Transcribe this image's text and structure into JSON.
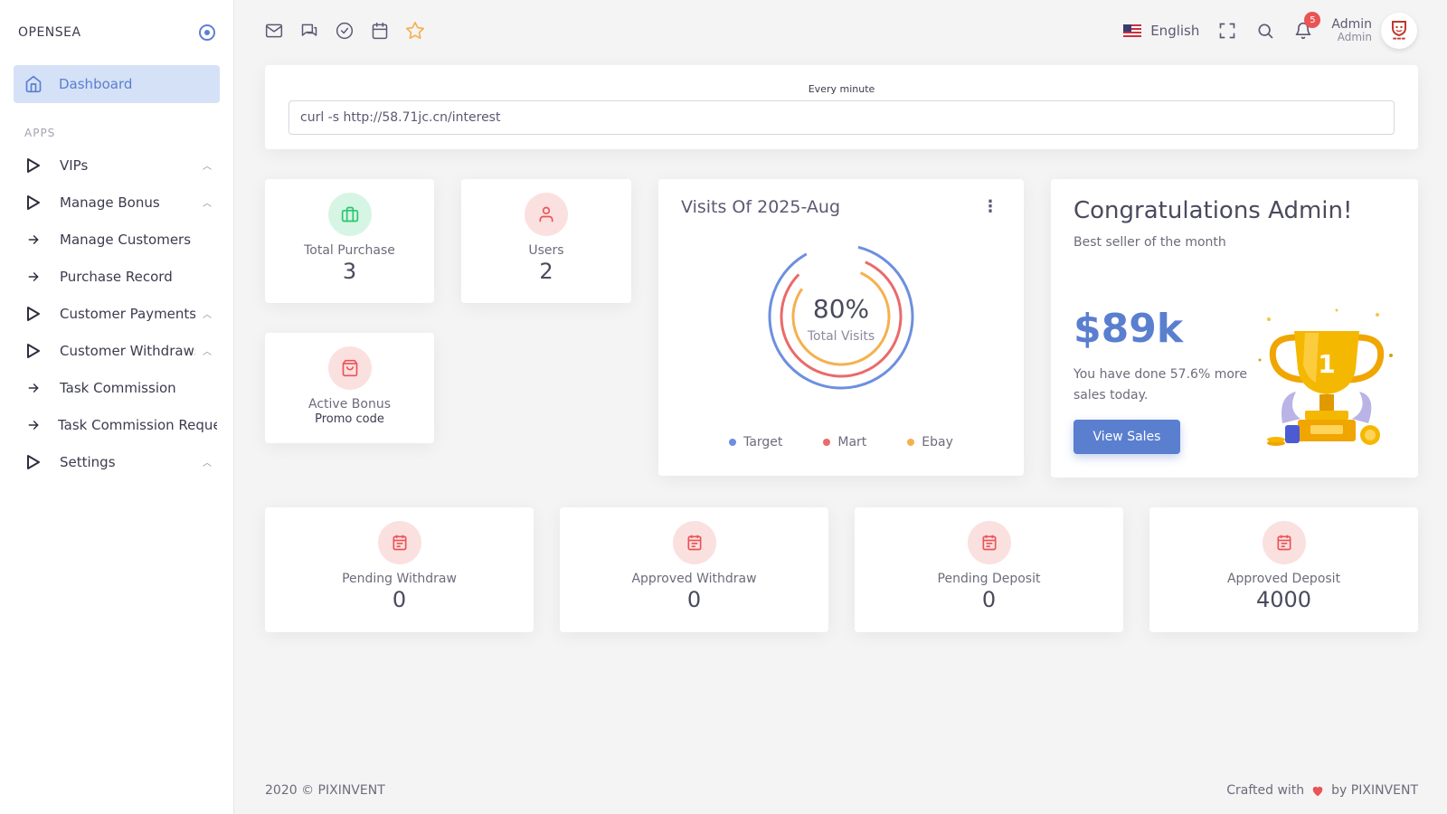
{
  "brand": {
    "name": "OPENSEA"
  },
  "sidebar": {
    "active": {
      "label": "Dashboard"
    },
    "section_label": "APPS",
    "items": [
      {
        "label": "VIPs",
        "icon": "play-outline-icon",
        "has_children": true
      },
      {
        "label": "Manage Bonus",
        "icon": "play-outline-icon",
        "has_children": true
      },
      {
        "label": "Manage Customers",
        "icon": "arrow-right-icon",
        "has_children": false
      },
      {
        "label": "Purchase Record",
        "icon": "arrow-right-icon",
        "has_children": false
      },
      {
        "label": "Customer Payments",
        "icon": "play-outline-icon",
        "has_children": true
      },
      {
        "label": "Customer Withdraws",
        "icon": "play-outline-icon",
        "has_children": true
      },
      {
        "label": "Task Commission",
        "icon": "arrow-right-icon",
        "has_children": false
      },
      {
        "label": "Task Commission Reques",
        "icon": "arrow-right-icon",
        "has_children": false
      },
      {
        "label": "Settings",
        "icon": "play-outline-icon",
        "has_children": true
      }
    ]
  },
  "topbar": {
    "icons": [
      "mail-icon",
      "chat-icon",
      "check-circle-icon",
      "calendar-icon",
      "star-icon"
    ],
    "language": "English",
    "notifications": "5",
    "user_name": "Admin",
    "user_role": "Admin"
  },
  "cron": {
    "label": "Every minute",
    "value": "curl -s http://58.71jc.cn/interest"
  },
  "stats": {
    "total_purchase": {
      "label": "Total Purchase",
      "value": "3"
    },
    "users": {
      "label": "Users",
      "value": "2"
    },
    "active_bonus": {
      "label": "Active Bonus",
      "sub": "Promo code"
    }
  },
  "visits": {
    "title": "Visits Of 2025-Aug",
    "center_value": "80%",
    "center_label": "Total Visits",
    "legend": [
      {
        "name": "Target",
        "color": "#6d8fe0"
      },
      {
        "name": "Mart",
        "color": "#ea6a6a"
      },
      {
        "name": "Ebay",
        "color": "#f5b04e"
      }
    ]
  },
  "chart_data": {
    "type": "radialBar",
    "title": "Visits Of 2025-Aug",
    "center_value": "80%",
    "center_label": "Total Visits",
    "series": [
      {
        "name": "Target"
      },
      {
        "name": "Mart"
      },
      {
        "name": "Ebay"
      }
    ]
  },
  "congrats": {
    "title": "Congratulations Admin!",
    "subtitle": "Best seller of the month",
    "amount": "$89k",
    "text": "You have done 57.6% more sales today.",
    "button": "View Sales"
  },
  "bottom_stats": [
    {
      "label": "Pending Withdraw",
      "value": "0"
    },
    {
      "label": "Approved Withdraw",
      "value": "0"
    },
    {
      "label": "Pending Deposit",
      "value": "0"
    },
    {
      "label": "Approved Deposit",
      "value": "4000"
    }
  ],
  "footer": {
    "left": "2020 © PIXINVENT",
    "crafted": "Crafted with",
    "by": "by PIXINVENT"
  },
  "colors": {
    "primary": "#5a7fcf",
    "danger": "#ea5455",
    "success": "#28c76f",
    "warning": "#f5b04e"
  }
}
